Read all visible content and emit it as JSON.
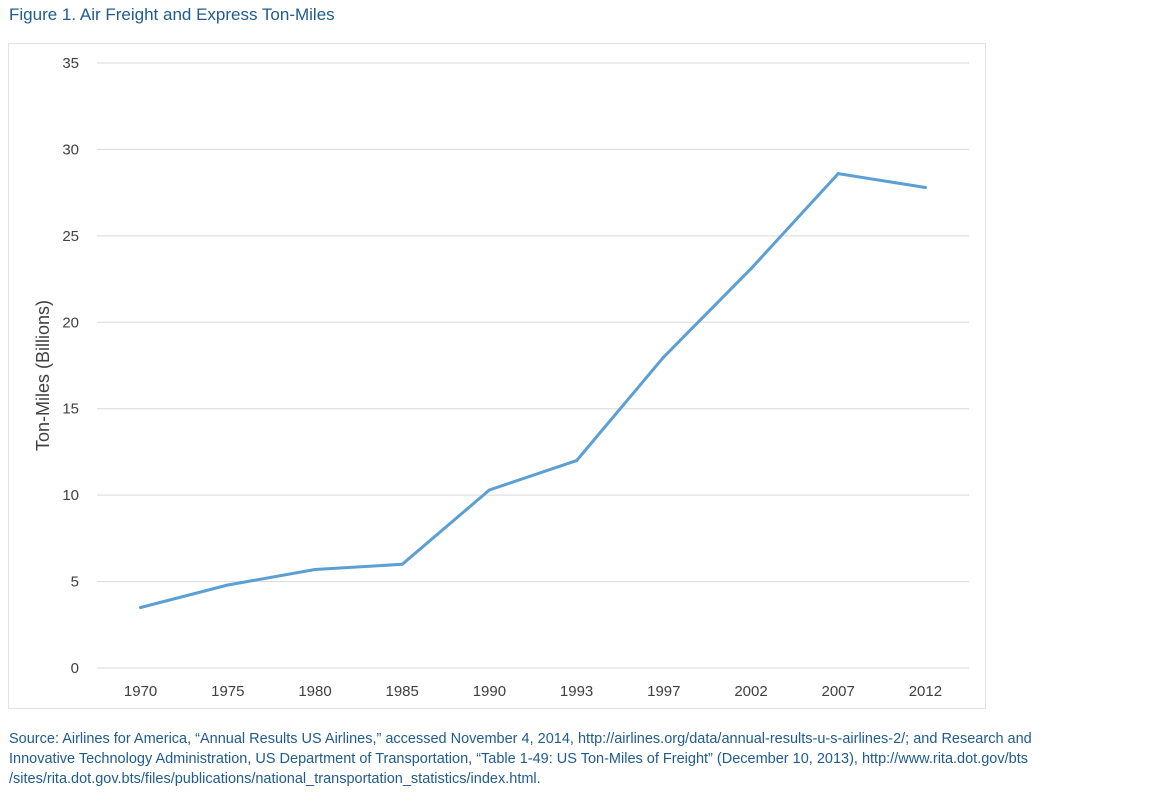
{
  "figure": {
    "title": "Figure 1. Air Freight and Express Ton-Miles"
  },
  "colors": {
    "title": "#1f5b8f",
    "line": "#5b9fd4",
    "grid": "#d9d9d9",
    "tick_text": "#404040",
    "source_text": "#1f5b8f"
  },
  "chart_data": {
    "type": "line",
    "title": "",
    "xlabel": "",
    "ylabel": "Ton-Miles (Billions)",
    "categories": [
      "1970",
      "1975",
      "1980",
      "1985",
      "1990",
      "1993",
      "1997",
      "2002",
      "2007",
      "2012"
    ],
    "series": [
      {
        "values": [
          3.5,
          4.8,
          5.7,
          6.0,
          10.3,
          12.0,
          18.0,
          23.1,
          28.6,
          27.8
        ]
      }
    ],
    "ylim": [
      0,
      35
    ],
    "yticks": [
      0,
      5,
      10,
      15,
      20,
      25,
      30,
      35
    ],
    "grid": true,
    "legend": "none"
  },
  "source": {
    "lines": [
      "Source: Airlines for America, “Annual Results US Airlines,” accessed November 4, 2014, http://airlines.org/data/annual-results-u-s-airlines-2/; and Research and",
      "Innovative Technology Administration, US Department of Transportation, “Table 1-49: US Ton-Miles of Freight” (December 10, 2013), http://www.rita.dot.gov/bts",
      "/sites/rita.dot.gov.bts/files/publications/national_transportation_statistics/index.html."
    ]
  }
}
